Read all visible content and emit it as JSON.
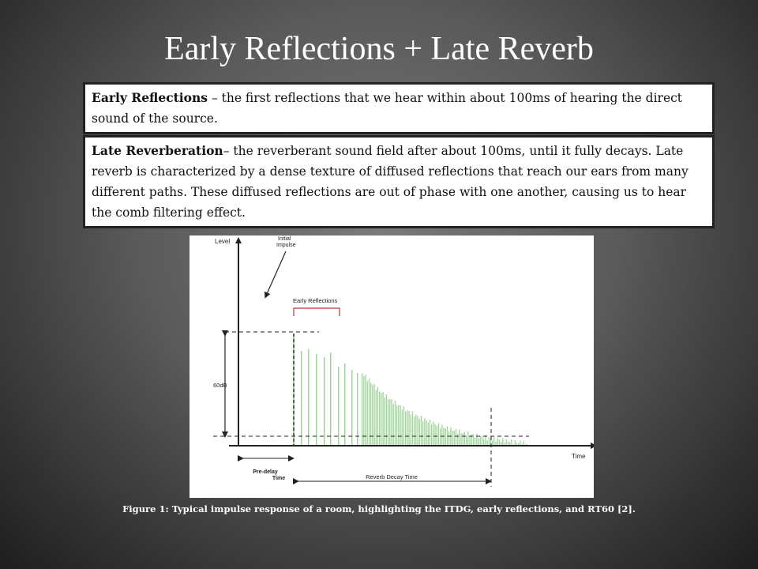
{
  "slide": {
    "title": "Early Reflections + Late Reverb",
    "early": {
      "term": "Early Reflections",
      "text": " – the first reflections that we hear within about 100ms of hearing the direct sound of the source."
    },
    "late": {
      "term": "Late Reverberation",
      "text": "– the reverberant sound field after about 100ms, until it fully decays. Late reverb is characterized by a dense texture of diffused reflections that reach our ears from many different paths. These diffused reflections are out of phase  with one another, causing us to hear the comb filtering effect."
    },
    "caption": "Figure 1: Typical impulse response of a room, highlighting the ITDG, early reflections, and RT60 [2]."
  },
  "figure": {
    "y_axis_label": "Level",
    "x_axis_label": "Time",
    "initial_impulse_line1": "Initial",
    "initial_impulse_line2": "Impulse",
    "early_reflections_label": "Early Reflections",
    "db_label": "60dB",
    "predelay_line1": "Pre-delay",
    "predelay_line2": "Time",
    "reverb_decay_label": "Reverb Decay Time",
    "bar_color": "#9fd49a"
  }
}
